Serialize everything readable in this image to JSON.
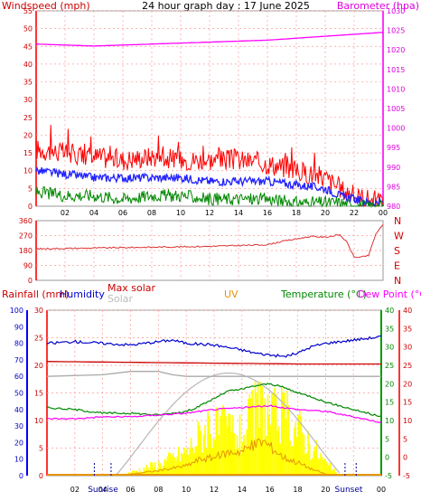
{
  "title": "24 hour graph day : 17 June 2025",
  "colors": {
    "wind": "#ff0000",
    "gust": "#ff0000",
    "avg": "#2222ff",
    "windmin": "#008800",
    "baro": "#ff00ff",
    "dir": "#dd3333",
    "rain": "#ff6600",
    "humidity": "#0000cc",
    "maxsolar": "#bbbbbb",
    "solar": "#ffff00",
    "uv": "#e69500",
    "temp": "#008800",
    "dew": "#ff00ff",
    "maxsolarLine": "#cc0000",
    "grid": "#ff9999"
  },
  "chart_data": [
    {
      "type": "line",
      "title": "24 hour graph day : 17 June 2025",
      "ylabel": "Windspeed (mph)",
      "y2label": "Barometer (hpa)",
      "x_ticks": [
        "02",
        "04",
        "06",
        "08",
        "10",
        "12",
        "14",
        "16",
        "18",
        "20",
        "22",
        "00"
      ],
      "ylim": [
        0,
        55
      ],
      "y_ticks": [
        0,
        5,
        10,
        15,
        20,
        25,
        30,
        35,
        40,
        45,
        50,
        55
      ],
      "y2lim": [
        980,
        1030
      ],
      "y2_ticks": [
        980,
        985,
        990,
        995,
        1000,
        1005,
        1010,
        1015,
        1020,
        1025,
        1030
      ],
      "hours": [
        0,
        2,
        4,
        6,
        8,
        10,
        12,
        14,
        16,
        18,
        20,
        21,
        22,
        23,
        24
      ],
      "series": [
        {
          "key": "gust",
          "values": [
            16,
            15,
            14,
            13,
            14,
            13,
            13,
            13,
            12,
            10,
            8,
            5,
            3,
            2,
            1
          ]
        },
        {
          "key": "avg",
          "values": [
            10,
            9,
            8,
            8,
            8,
            8,
            7,
            7,
            7,
            6,
            5,
            3,
            2,
            1,
            1
          ]
        },
        {
          "key": "windmin",
          "values": [
            4,
            3,
            3,
            2,
            3,
            3,
            2,
            2,
            2,
            1,
            1,
            1,
            0,
            0,
            0
          ]
        }
      ],
      "baro": {
        "hours": [
          0,
          4,
          8,
          12,
          16,
          20,
          24
        ],
        "values": [
          1021.5,
          1021,
          1021.5,
          1022,
          1022.5,
          1023.5,
          1024.5
        ]
      }
    },
    {
      "type": "line",
      "y_labels_left": [
        "0",
        "90",
        "180",
        "270",
        "360"
      ],
      "y_labels_right": [
        "N",
        "E",
        "S",
        "W",
        "N"
      ],
      "ylim": [
        0,
        360
      ],
      "hours": [
        0,
        4,
        8,
        12,
        16,
        17,
        18,
        19,
        20,
        21,
        21.5,
        22,
        22.5,
        23,
        23.5,
        24
      ],
      "values": [
        190,
        195,
        200,
        205,
        215,
        235,
        250,
        265,
        260,
        275,
        230,
        140,
        140,
        150,
        280,
        335
      ]
    },
    {
      "type": "line",
      "labels": {
        "rain": "Rainfall (mm)",
        "humidity": "Humidity",
        "maxsolar": "Max solar",
        "solar": "Solar",
        "uv": "UV",
        "temp": "Temperature (°C)",
        "dew": "Dew Point (°C)"
      },
      "x_ticks": [
        "02",
        "04",
        "06",
        "08",
        "10",
        "12",
        "14",
        "16",
        "18",
        "20",
        "22",
        "00"
      ],
      "sunrise_label": "Sunrise",
      "sunset_label": "Sunset",
      "rain_axis": {
        "ylim": [
          0,
          30
        ],
        "ticks": [
          0,
          5,
          10,
          15,
          20,
          25,
          30
        ]
      },
      "humidity_axis": {
        "ylim": [
          0,
          100
        ],
        "ticks": [
          0,
          10,
          20,
          30,
          40,
          50,
          60,
          70,
          80,
          90,
          100
        ]
      },
      "temp_axis": {
        "ylim": [
          -5,
          40
        ],
        "ticks": [
          -5,
          0,
          5,
          10,
          15,
          20,
          25,
          30,
          35,
          40
        ]
      },
      "humidity": {
        "hours": [
          0,
          2,
          4,
          6,
          8,
          9,
          10,
          12,
          14,
          15,
          16,
          17,
          18,
          19,
          20,
          22,
          24
        ],
        "values": [
          80,
          81,
          80,
          79,
          81,
          82,
          80,
          79,
          76,
          74,
          73,
          72,
          74,
          78,
          80,
          82,
          84
        ]
      },
      "temperature": {
        "hours": [
          0,
          2,
          4,
          6,
          8,
          10,
          11,
          12,
          13,
          14,
          15,
          16,
          17,
          18,
          19,
          20,
          22,
          24
        ],
        "values": [
          13.5,
          13,
          12,
          12,
          11.5,
          12.5,
          14,
          16,
          18,
          18.5,
          19.5,
          20,
          19,
          17.5,
          16.5,
          15,
          13,
          11
        ]
      },
      "dewpoint": {
        "hours": [
          0,
          2,
          4,
          6,
          8,
          10,
          12,
          14,
          16,
          18,
          20,
          22,
          24
        ],
        "values": [
          10.5,
          10.5,
          11,
          11,
          11.5,
          12,
          13,
          13.5,
          14,
          13,
          12.5,
          11,
          9.5
        ]
      },
      "maxsolarline": {
        "hours": [
          0,
          6,
          12,
          18,
          24
        ],
        "values": [
          69,
          68.5,
          68,
          67.5,
          67.5
        ]
      },
      "solar_envelope": {
        "hours": [
          5,
          6,
          8,
          10,
          11,
          11.5,
          12,
          13,
          14,
          14.5,
          15,
          15.5,
          16,
          17,
          18,
          19,
          20,
          20.5,
          21
        ],
        "values": [
          0,
          3,
          10,
          20,
          35,
          45,
          38,
          40,
          32,
          45,
          55,
          60,
          48,
          50,
          40,
          25,
          10,
          5,
          0
        ]
      },
      "uv": {
        "hours": [
          5,
          6,
          8,
          10,
          11,
          12,
          13,
          14,
          15,
          15.5,
          16,
          17,
          18,
          19,
          20,
          21
        ],
        "values": [
          0,
          1,
          3,
          6,
          10,
          11,
          14,
          15,
          19,
          21,
          18,
          11,
          8,
          4,
          1,
          0
        ]
      }
    }
  ]
}
